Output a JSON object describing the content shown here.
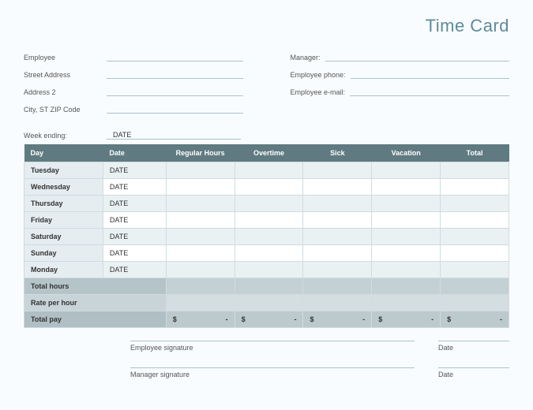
{
  "title": "Time Card",
  "info": {
    "left": [
      {
        "label": "Employee",
        "value": ""
      },
      {
        "label": "Street Address",
        "value": ""
      },
      {
        "label": "Address 2",
        "value": ""
      },
      {
        "label": "City, ST  ZIP Code",
        "value": ""
      }
    ],
    "right": [
      {
        "label": "Manager:",
        "value": ""
      },
      {
        "label": "Employee phone:",
        "value": ""
      },
      {
        "label": "Employee e-mail:",
        "value": ""
      }
    ]
  },
  "week_ending": {
    "label": "Week ending:",
    "value": "DATE"
  },
  "table": {
    "columns": [
      "Day",
      "Date",
      "Regular Hours",
      "Overtime",
      "Sick",
      "Vacation",
      "Total"
    ],
    "rows": [
      {
        "day": "Tuesday",
        "date": "DATE"
      },
      {
        "day": "Wednesday",
        "date": "DATE"
      },
      {
        "day": "Thursday",
        "date": "DATE"
      },
      {
        "day": "Friday",
        "date": "DATE"
      },
      {
        "day": "Saturday",
        "date": "DATE"
      },
      {
        "day": "Sunday",
        "date": "DATE"
      },
      {
        "day": "Monday",
        "date": "DATE"
      }
    ],
    "summary": [
      {
        "label": "Total hours",
        "type": "summary"
      },
      {
        "label": "Rate per hour",
        "type": "rate"
      },
      {
        "label": "Total pay",
        "type": "total",
        "currency": true
      }
    ]
  },
  "signatures": [
    {
      "label": "Employee signature",
      "date_label": "Date"
    },
    {
      "label": "Manager signature",
      "date_label": "Date"
    }
  ],
  "colors": {
    "header_bg": "#5f7a80",
    "title_color": "#5f8a96",
    "line_color": "#a8c4cc",
    "alt_row": "#eaf1f3",
    "day_bg": "#e5edf0"
  }
}
